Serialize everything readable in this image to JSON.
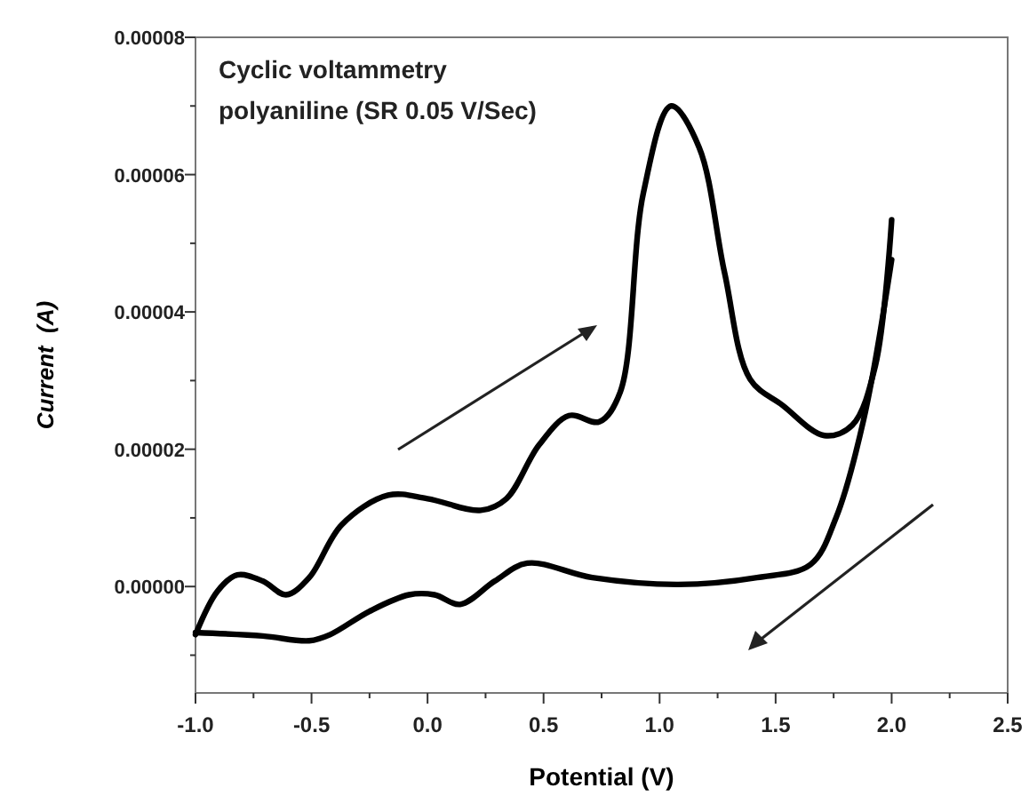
{
  "chart_data": {
    "type": "line",
    "xlabel": "Potential (V)",
    "ylabel": "Current  (A)",
    "annotations": [
      "Cyclic voltammetry",
      "polyaniline (SR 0.05 V/Sec)"
    ],
    "xlim": [
      -1.0,
      2.5
    ],
    "xticks": [
      {
        "value": -1,
        "label": "-1.0"
      },
      {
        "value": -0.75,
        "label": null
      },
      -0.5,
      {
        "value": -0.25,
        "label": null
      },
      {
        "value": 0,
        "label": "0.0"
      },
      {
        "value": 0.25,
        "label": null
      },
      0.5,
      {
        "value": 0.75,
        "label": null
      },
      {
        "value": 1,
        "label": "1.0"
      },
      {
        "value": 1.25,
        "label": null
      },
      1.5,
      {
        "value": 1.75,
        "label": null
      },
      {
        "value": 2,
        "label": "2.0"
      },
      {
        "value": 2.25,
        "label": null
      },
      2.5
    ],
    "ylim": [
      -1.55e-05,
      8e-05
    ],
    "yticks": [
      {
        "value": -1e-05,
        "label": null
      },
      {
        "value": 0,
        "label": "0.00000"
      },
      {
        "value": 1e-05,
        "label": null
      },
      {
        "value": 2e-05,
        "label": "0.00002"
      },
      {
        "value": 3e-05,
        "label": null
      },
      {
        "value": 4e-05,
        "label": "0.00004"
      },
      {
        "value": 5e-05,
        "label": null
      },
      {
        "value": 6e-05,
        "label": "0.00006"
      },
      {
        "value": 7e-05,
        "label": null
      },
      {
        "value": 8e-05,
        "label": "0.00008"
      }
    ],
    "grid": false,
    "marker": "none",
    "line_style": "solid",
    "series": [
      {
        "color": "#000000",
        "x": [
          -1.0,
          -0.906,
          -0.82,
          -0.71,
          -0.61,
          -0.51,
          -0.37,
          -0.17,
          0.0,
          0.23,
          0.34,
          0.48,
          0.61,
          0.74,
          0.83,
          0.93,
          1.05,
          1.17,
          1.28,
          1.39,
          1.53,
          1.71,
          1.83,
          1.93,
          2.0
        ],
        "values": [
          -7e-06,
          -7e-07,
          1.7e-06,
          8e-07,
          -1.2e-06,
          1.3e-06,
          9e-06,
          1.33e-05,
          1.28e-05,
          1.11e-05,
          1.28e-05,
          2.06e-05,
          2.49e-05,
          2.4e-05,
          2.83e-05,
          5.73e-05,
          7e-05,
          6.4e-05,
          4.57e-05,
          3.02e-05,
          2.64e-05,
          2.2e-05,
          2.35e-05,
          3.22e-05,
          5.34e-05
        ]
      },
      {
        "color": "#000000",
        "x": [
          2.0,
          1.88,
          1.76,
          1.65,
          1.42,
          1.08,
          0.71,
          0.43,
          0.29,
          0.14,
          0.03,
          -0.08,
          -0.25,
          -0.42,
          -0.51,
          -0.71,
          -1.0
        ],
        "values": [
          4.76e-05,
          2.44e-05,
          1e-05,
          3.2e-06,
          1.3e-06,
          3e-07,
          1.3e-06,
          3.4e-06,
          8e-07,
          -2.6e-06,
          -1.2e-06,
          -1.2e-06,
          -3.6e-06,
          -7e-06,
          -7.9e-06,
          -7.2e-06,
          -6.7e-06
        ]
      }
    ]
  }
}
